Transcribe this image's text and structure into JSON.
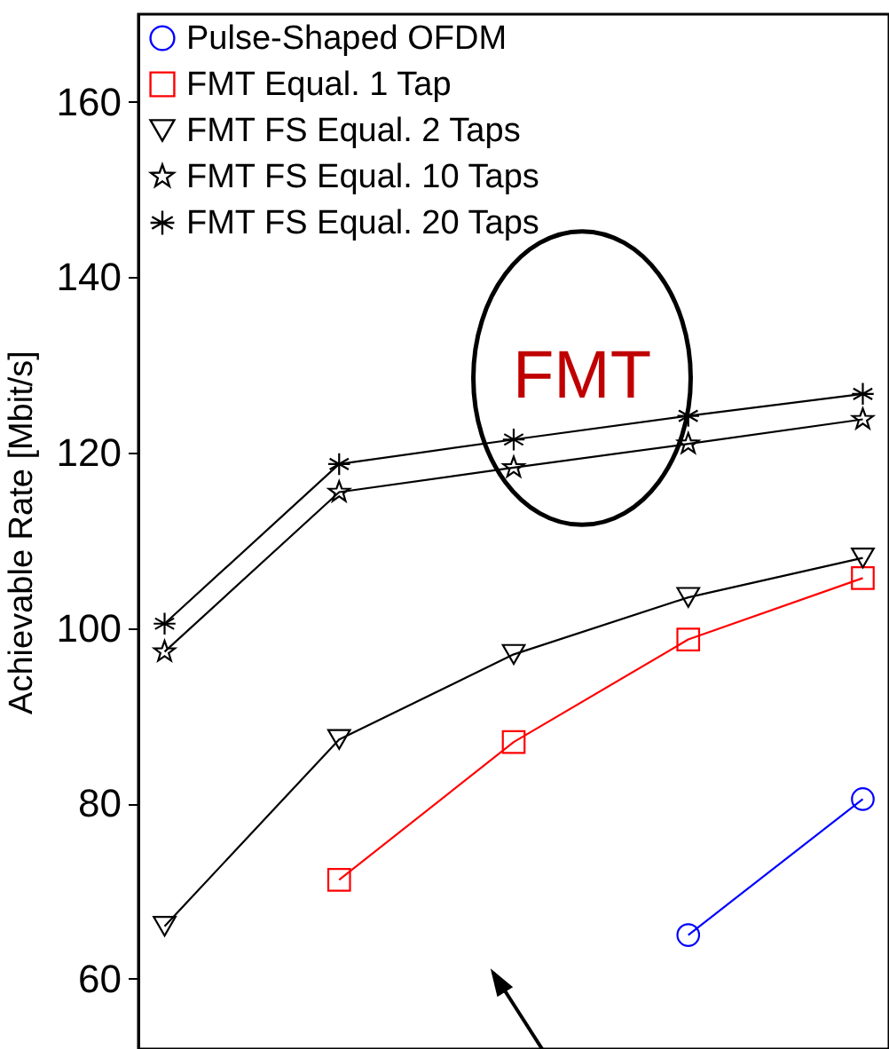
{
  "chart_data": {
    "type": "line",
    "ylabel": "Achievable Rate [Mbit/s]",
    "categories": [
      null,
      null,
      null,
      null,
      null
    ],
    "ylim": [
      52,
      170
    ],
    "yticks": [
      60,
      80,
      100,
      120,
      140,
      160
    ],
    "grid": false,
    "legend": "top left",
    "tick_labels": "y",
    "annotations": [
      "FMT"
    ],
    "series": [
      {
        "name": "Pulse-Shaped OFDM",
        "color": "#0000ff",
        "marker": "circle",
        "values": [
          null,
          null,
          null,
          65,
          80.5
        ]
      },
      {
        "name": "FMT Equal. 1 Tap",
        "color": "#ff0000",
        "marker": "square",
        "values": [
          null,
          71.3,
          87,
          98.7,
          105.7
        ]
      },
      {
        "name": "FMT FS Equal. 2 Taps",
        "color": "#000000",
        "marker": "triangle",
        "values": [
          66,
          87.3,
          97,
          103.5,
          108
        ]
      },
      {
        "name": "FMT FS Equal. 10 Taps",
        "color": "#000000",
        "marker": "star",
        "values": [
          97.3,
          115.5,
          118.3,
          121,
          123.8
        ]
      },
      {
        "name": "FMT FS Equal. 20 Taps",
        "color": "#000000",
        "marker": "cross",
        "values": [
          100.5,
          118.7,
          121.5,
          124.2,
          126.7
        ]
      }
    ]
  }
}
